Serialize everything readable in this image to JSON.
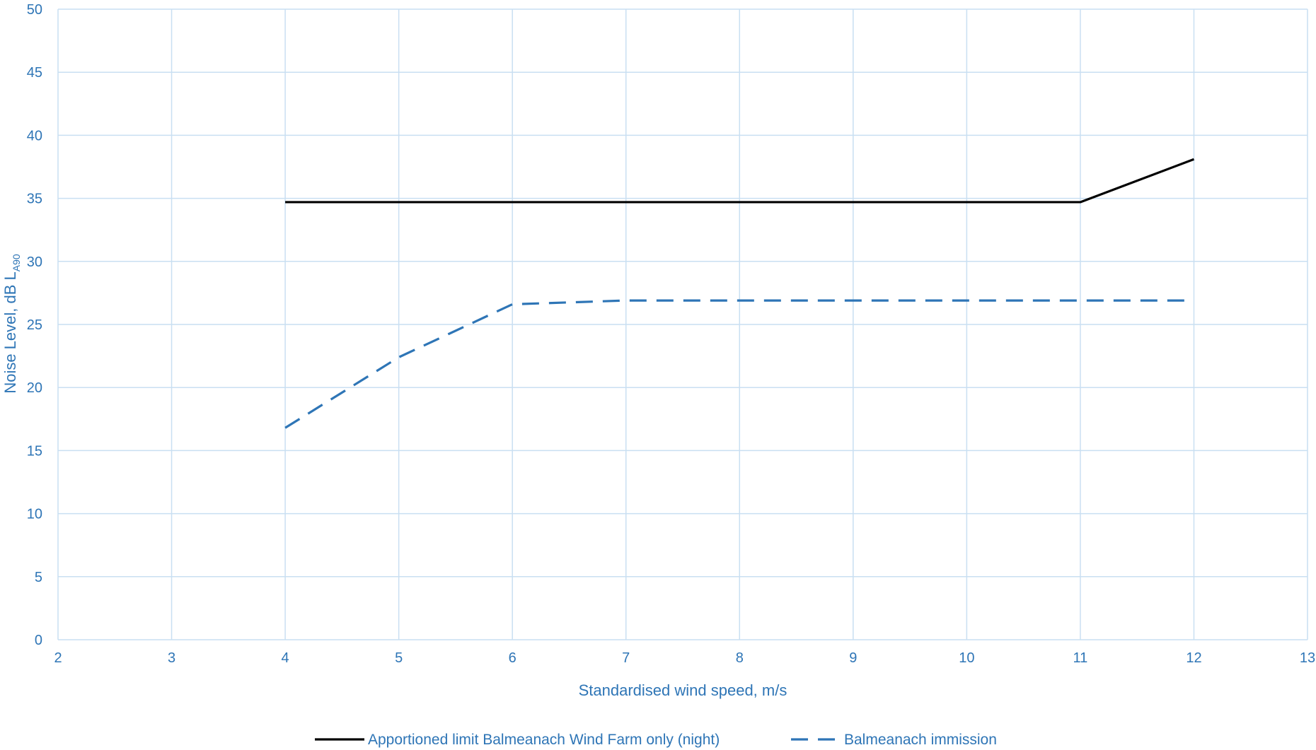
{
  "chart_data": {
    "type": "line",
    "xlabel": "Standardised wind speed, m/s",
    "ylabel": "Noise Level, dB L",
    "ylabel_subscript": "A90",
    "xlim": [
      2,
      13
    ],
    "ylim": [
      0,
      50
    ],
    "x_ticks": [
      "2",
      "3",
      "4",
      "5",
      "6",
      "7",
      "8",
      "9",
      "10",
      "11",
      "12",
      "13"
    ],
    "y_ticks": [
      "0",
      "5",
      "10",
      "15",
      "20",
      "25",
      "30",
      "35",
      "40",
      "45",
      "50"
    ],
    "grid": true,
    "legend_position": "bottom",
    "series": [
      {
        "name": "Apportioned limit Balmeanach Wind Farm only (night)",
        "color": "#000000",
        "dash": "solid",
        "x": [
          4,
          5,
          6,
          7,
          8,
          9,
          10,
          11,
          12
        ],
        "y": [
          34.7,
          34.7,
          34.7,
          34.7,
          34.7,
          34.7,
          34.7,
          34.7,
          38.1
        ]
      },
      {
        "name": "Balmeanach immission",
        "color": "#2e75b6",
        "dash": "dashed",
        "x": [
          4,
          5,
          6,
          7,
          8,
          9,
          10,
          11,
          12
        ],
        "y": [
          16.8,
          22.4,
          26.6,
          26.9,
          26.9,
          26.9,
          26.9,
          26.9,
          26.9
        ]
      }
    ],
    "colors": {
      "grid": "#c9dff2",
      "text": "#2e75b6"
    }
  }
}
